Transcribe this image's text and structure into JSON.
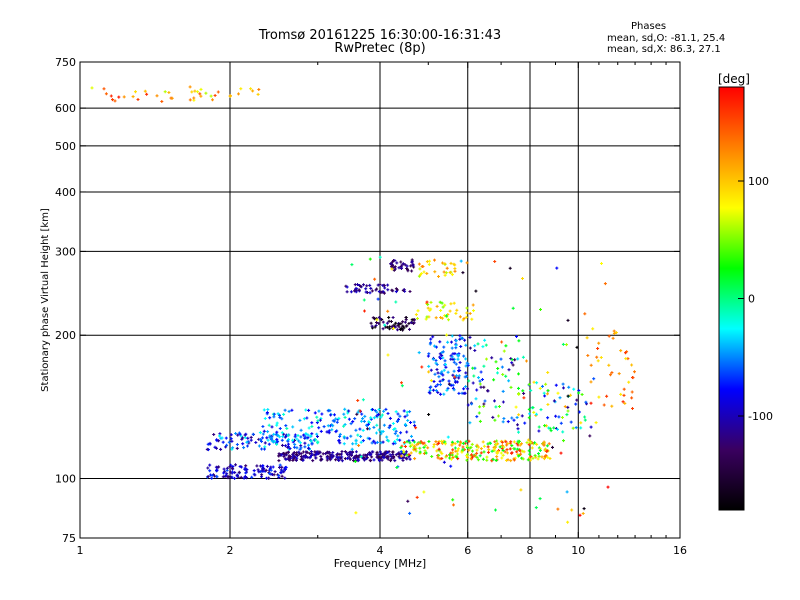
{
  "chart_data": {
    "type": "scatter",
    "title": "Tromsø 20161225 16:30:00-16:31:43",
    "subtitle": "RwPretec (8p)",
    "info_block": {
      "heading": "Phases",
      "line1": "mean, sd,O: -81.1, 25.4",
      "line2": "mean, sd,X:  86.3, 27.1"
    },
    "xlabel": "Frequency [MHz]",
    "ylabel": "Stationary phase Virtual Height [km]",
    "x_scale": "log",
    "y_scale": "log",
    "xlim": [
      1,
      16
    ],
    "ylim": [
      75,
      750
    ],
    "x_ticks": [
      1,
      2,
      4,
      6,
      8,
      10,
      16
    ],
    "y_ticks": [
      75,
      100,
      200,
      300,
      400,
      500,
      600,
      750
    ],
    "x_grid": [
      2,
      4,
      6,
      8,
      10
    ],
    "y_grid": [
      100,
      200,
      300,
      400,
      500,
      600
    ],
    "grid": true,
    "colorbar": {
      "label": "[deg]",
      "range": [
        -180,
        180
      ],
      "ticks": [
        100,
        0,
        -100
      ],
      "colors": [
        "#000000",
        "#3a0060",
        "#0000ff",
        "#00ffff",
        "#00ff00",
        "#ffff00",
        "#ff8000",
        "#ff0000"
      ]
    },
    "clusters": [
      {
        "x": [
          1.0,
          1.9
        ],
        "y": [
          615,
          665
        ],
        "n": 35,
        "phase": [
          60,
          180
        ]
      },
      {
        "x": [
          2.0,
          2.35
        ],
        "y": [
          625,
          665
        ],
        "n": 8,
        "phase": [
          70,
          130
        ]
      },
      {
        "x": [
          1.8,
          2.6
        ],
        "y": [
          100,
          107
        ],
        "n": 120,
        "phase": [
          -130,
          -60
        ]
      },
      {
        "x": [
          1.8,
          3.0
        ],
        "y": [
          115,
          125
        ],
        "n": 110,
        "phase": [
          -120,
          -20
        ]
      },
      {
        "x": [
          2.5,
          4.6
        ],
        "y": [
          109,
          114
        ],
        "n": 260,
        "phase": [
          -140,
          -90
        ]
      },
      {
        "x": [
          2.3,
          4.7
        ],
        "y": [
          118,
          140
        ],
        "n": 230,
        "phase": [
          -90,
          -10
        ]
      },
      {
        "x": [
          4.4,
          8.8
        ],
        "y": [
          109,
          120
        ],
        "n": 260,
        "phase": [
          10,
          170
        ]
      },
      {
        "x": [
          3.4,
          4.6
        ],
        "y": [
          245,
          256
        ],
        "n": 50,
        "phase": [
          -140,
          -90
        ]
      },
      {
        "x": [
          4.2,
          4.7
        ],
        "y": [
          272,
          288
        ],
        "n": 35,
        "phase": [
          -150,
          -100
        ]
      },
      {
        "x": [
          4.7,
          5.7
        ],
        "y": [
          265,
          290
        ],
        "n": 30,
        "phase": [
          50,
          130
        ]
      },
      {
        "x": [
          3.8,
          4.7
        ],
        "y": [
          205,
          218
        ],
        "n": 60,
        "phase": [
          -180,
          -110
        ]
      },
      {
        "x": [
          4.7,
          6.2
        ],
        "y": [
          215,
          235
        ],
        "n": 40,
        "phase": [
          40,
          120
        ]
      },
      {
        "x": [
          5.0,
          6.0
        ],
        "y": [
          150,
          200
        ],
        "n": 120,
        "phase": [
          -100,
          -30
        ]
      },
      {
        "x": [
          6.0,
          7.6
        ],
        "y": [
          130,
          200
        ],
        "n": 70,
        "phase": [
          -140,
          60
        ]
      },
      {
        "x": [
          7.5,
          10.5
        ],
        "y": [
          125,
          160
        ],
        "n": 80,
        "phase": [
          -130,
          120
        ]
      },
      {
        "x": [
          10.4,
          13.0
        ],
        "y": [
          140,
          210
        ],
        "n": 40,
        "phase": [
          80,
          170
        ]
      },
      {
        "x": [
          3.5,
          11.5
        ],
        "y": [
          80,
          300
        ],
        "n": 110,
        "phase": [
          -180,
          180
        ]
      }
    ]
  }
}
